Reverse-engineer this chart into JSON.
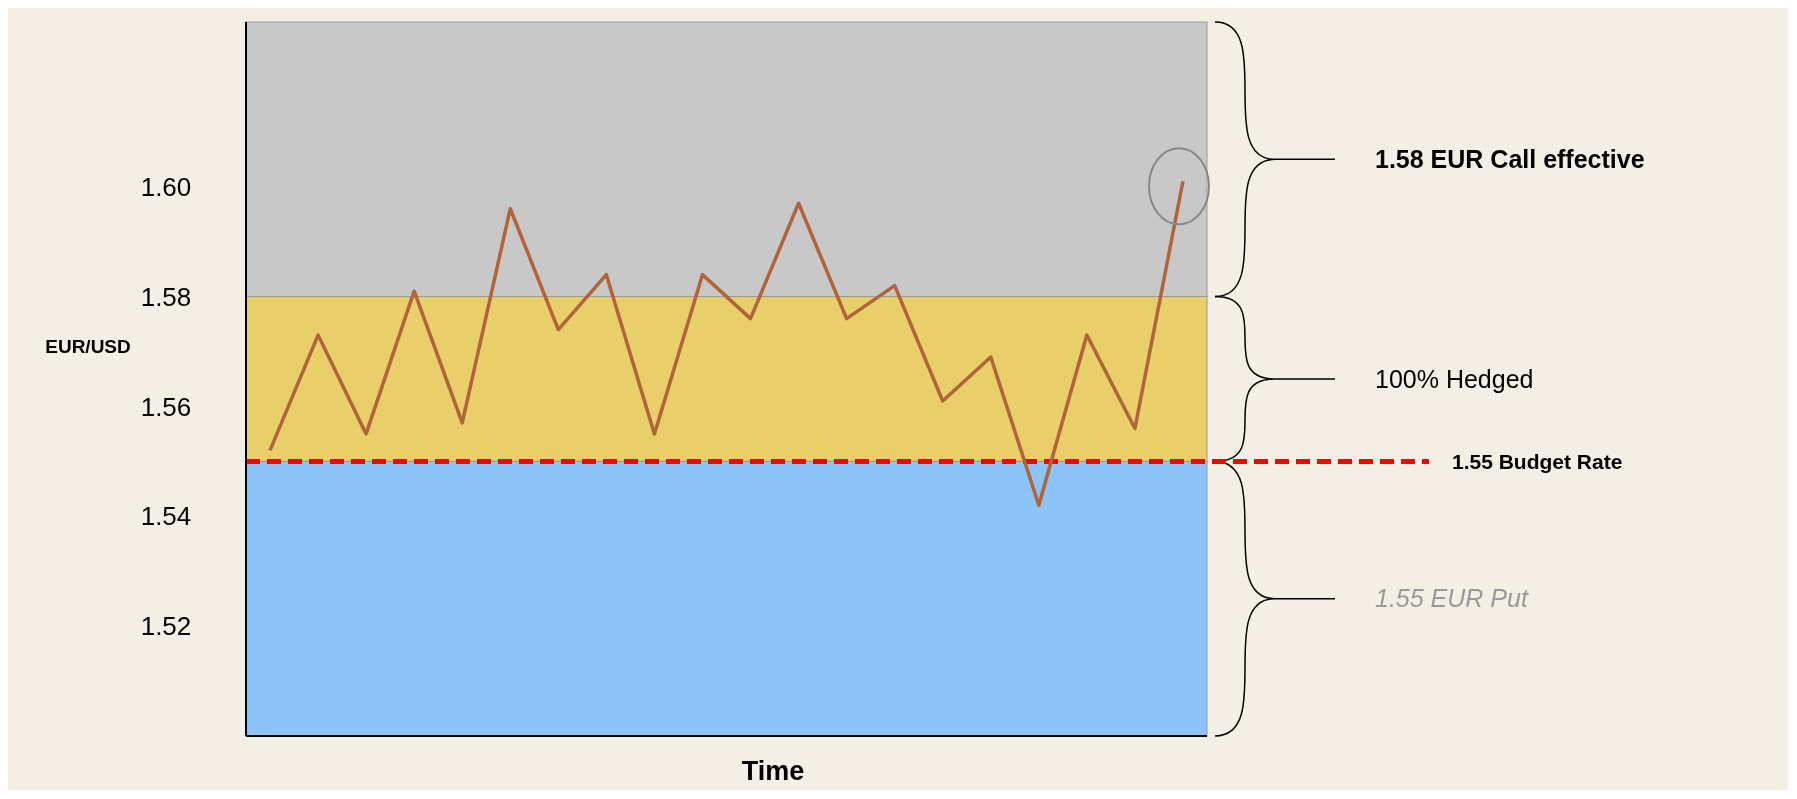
{
  "chart_data": {
    "type": "line",
    "xlabel": "Time",
    "ylabel": "EUR/USD",
    "categories": [
      null,
      null,
      null,
      null,
      null,
      null,
      null,
      null,
      null,
      null,
      null,
      null,
      null,
      null,
      null,
      null,
      null,
      null,
      null,
      null
    ],
    "series": [
      {
        "color": "#b0643a",
        "values": [
          1.552,
          1.573,
          1.555,
          1.581,
          1.557,
          1.596,
          1.574,
          1.584,
          1.555,
          1.584,
          1.576,
          1.597,
          1.576,
          1.582,
          1.561,
          1.569,
          1.542,
          1.573,
          1.556,
          1.601
        ]
      }
    ],
    "ylim": [
      1.5,
      1.63
    ],
    "yticks": [
      1.52,
      1.54,
      1.56,
      1.58,
      {
        "value": 1.6,
        "label": "1.60"
      }
    ],
    "tick_labels": "y",
    "grid": false,
    "marker": "none",
    "line_style": "solid",
    "bands": [
      {
        "axis": "y",
        "from": 1.58,
        "to": 1.63,
        "color": "#c8c8c8"
      },
      {
        "axis": "y",
        "from": 1.55,
        "to": 1.58,
        "color": "#e8cf6a"
      },
      {
        "axis": "y",
        "from": 1.5,
        "to": 1.55,
        "color": "#8cc4f8"
      }
    ],
    "annotations": [
      "1.58 EUR Call effective",
      "100% Hedged",
      "1.55 EUR Put"
    ],
    "ref_lines": [
      {
        "axis": "y",
        "value": 1.55,
        "label": "1.55 Budget Rate",
        "color": "#ff0000",
        "line_style": "dashed"
      }
    ]
  }
}
